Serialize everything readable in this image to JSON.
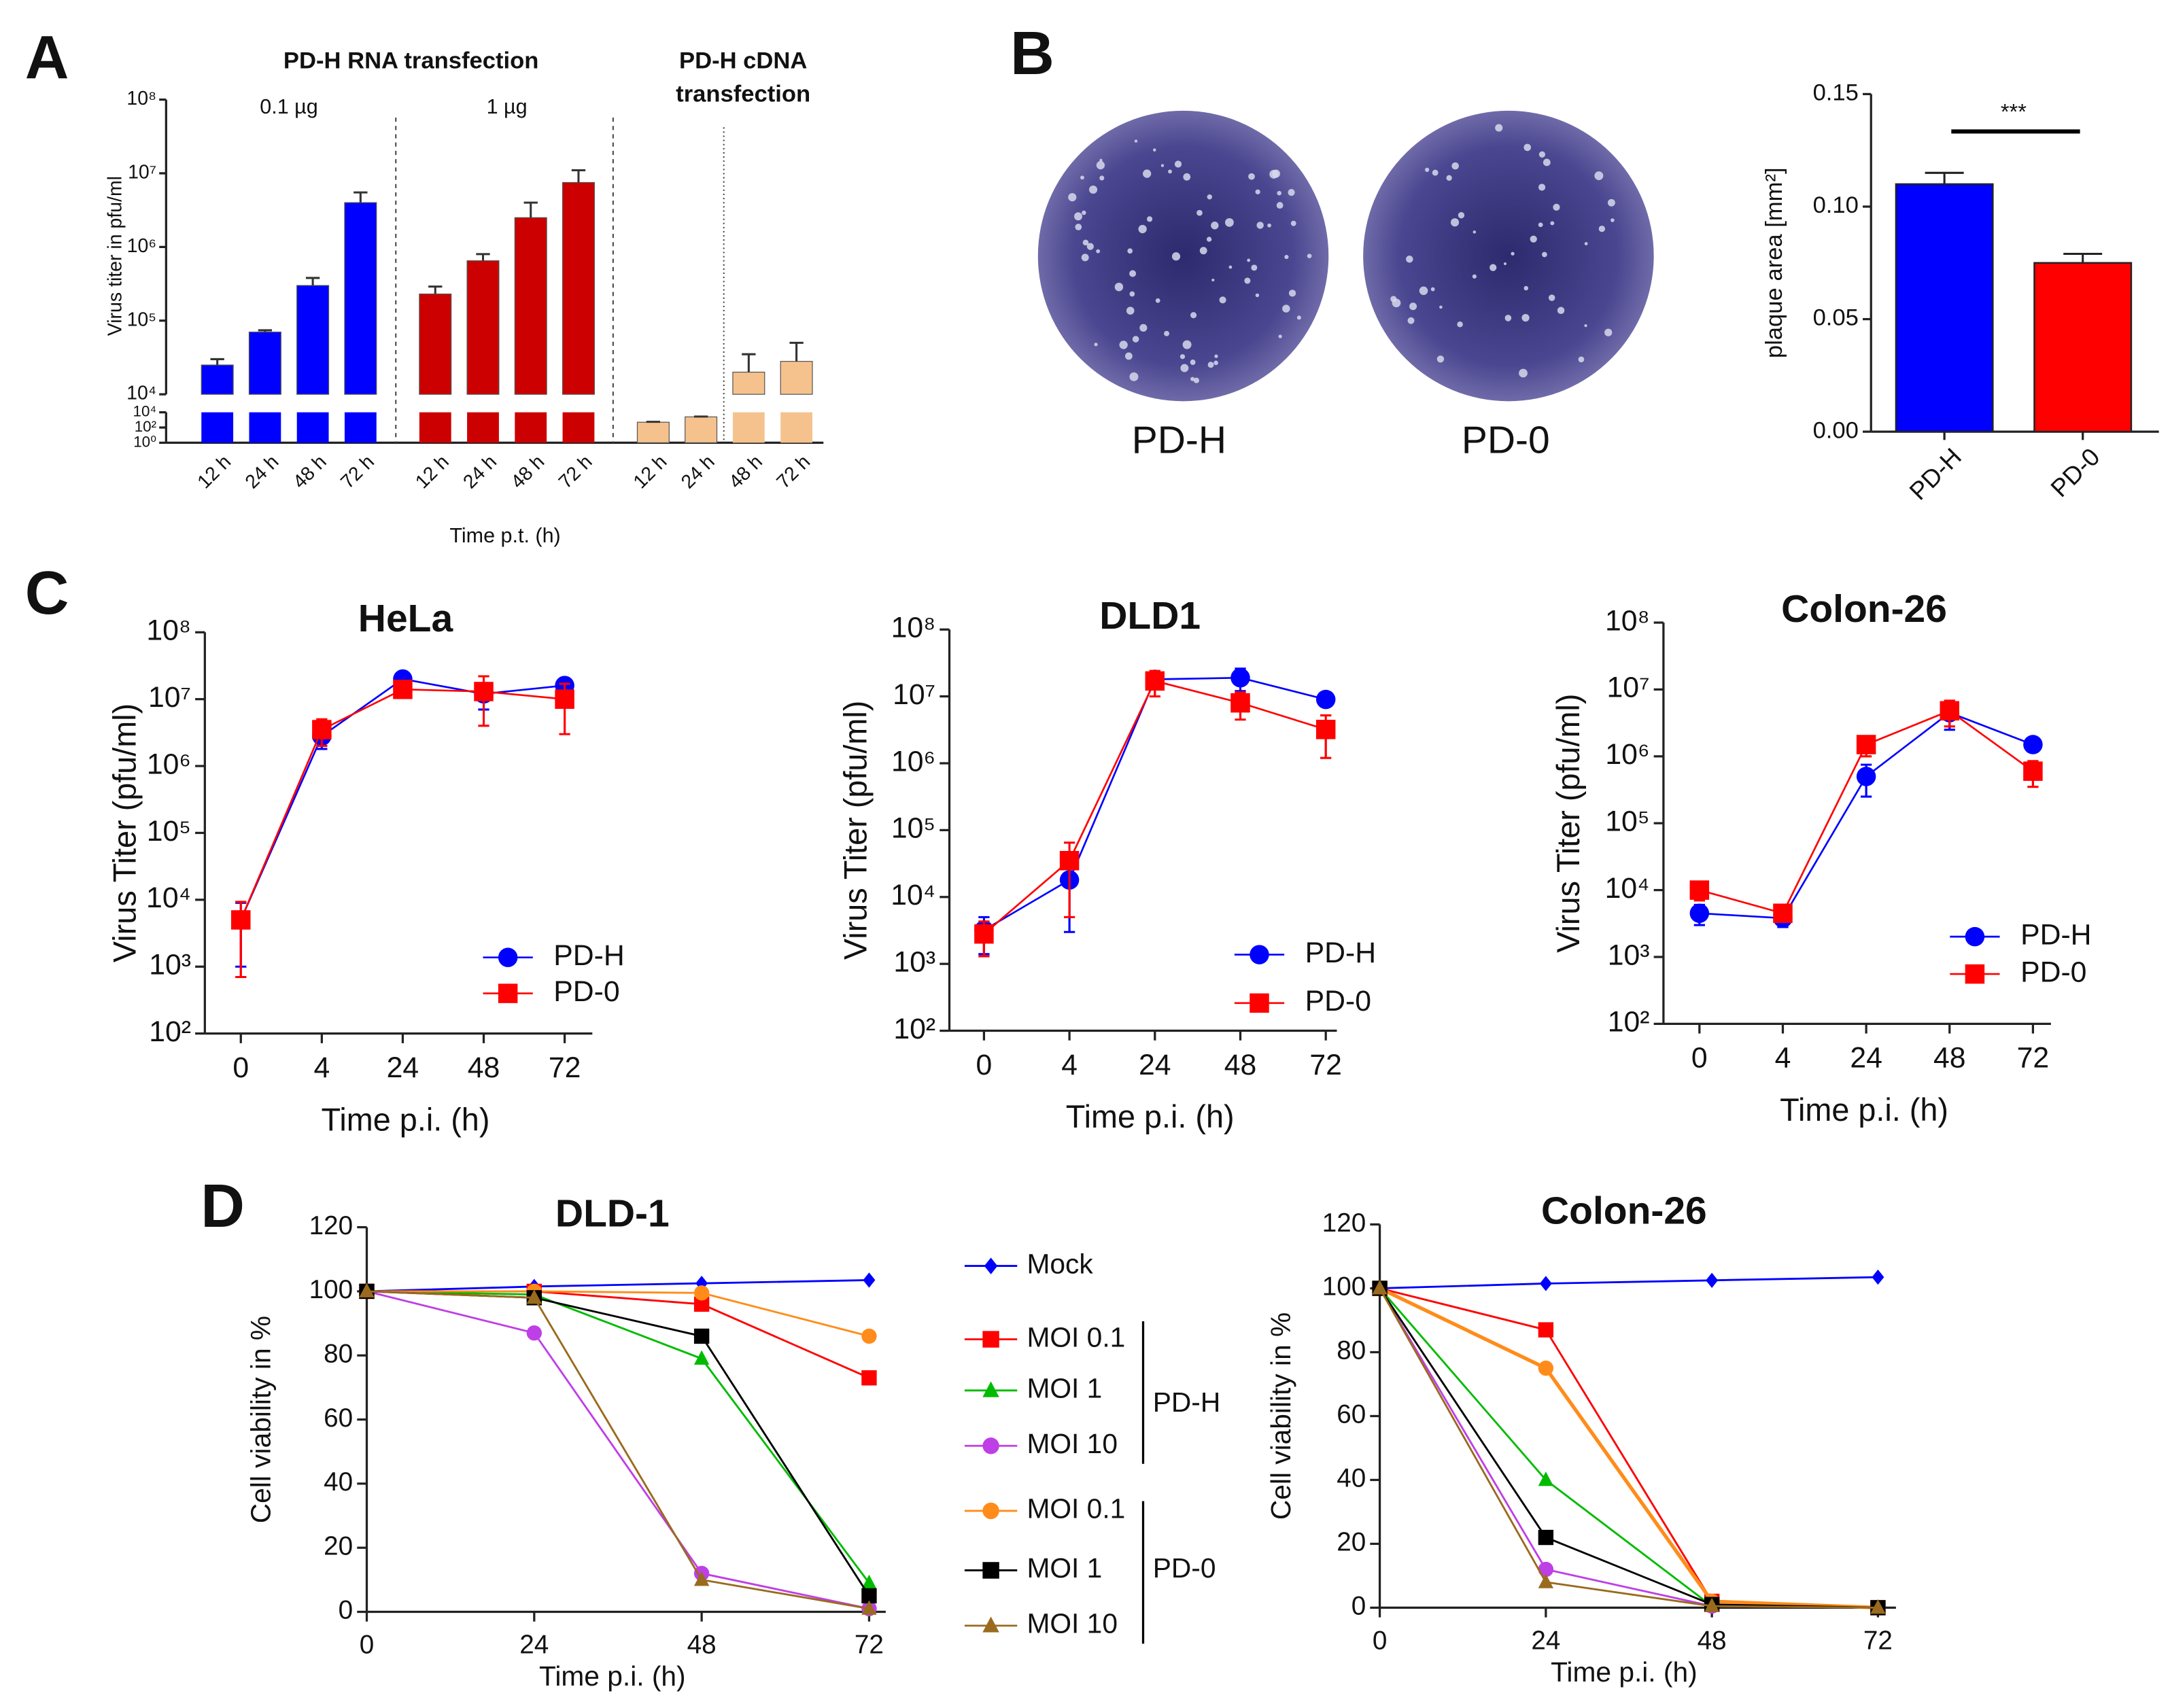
{
  "panel_labels": [
    "A",
    "B",
    "C",
    "D"
  ],
  "photos": {
    "labels": [
      "PD-H",
      "PD-0"
    ]
  },
  "chart_data": [
    {
      "type": "bar",
      "broken_axis": true,
      "header_left": "PD-H RNA transfection",
      "header_right": [
        "PD-H cDNA",
        "transfection"
      ],
      "ylabel": "Virus titer in pfu/ml",
      "xlabel": "Time p.t. (h)",
      "ylim": [
        10000,
        100000000
      ],
      "yticks": [
        {
          "value": 10000,
          "label": "10⁴"
        },
        {
          "value": 100000,
          "label": "10⁵"
        },
        {
          "value": 1000000,
          "label": "10⁶"
        },
        {
          "value": 10000000,
          "label": "10⁷"
        },
        {
          "value": 100000000,
          "label": "10⁸"
        }
      ],
      "lower_ylim": [
        1,
        10000
      ],
      "lower_yticks": [
        {
          "value": 1,
          "label": "10⁰"
        },
        {
          "value": 100,
          "label": "10²"
        },
        {
          "value": 10000,
          "label": "10⁴"
        }
      ],
      "groups": [
        {
          "label": "0.1 µg",
          "color": "#0000ff",
          "categories": [
            "12 h",
            "24 h",
            "48 h",
            "72 h"
          ],
          "values": [
            25000,
            70000,
            300000,
            4000000
          ],
          "errors": [
            5000,
            4000,
            80000,
            1500000
          ]
        },
        {
          "label": "1 µg",
          "color": "#cc0000",
          "categories": [
            "12 h",
            "24 h",
            "48 h",
            "72 h"
          ],
          "values": [
            230000,
            650000,
            2500000,
            7500000
          ],
          "errors": [
            60000,
            150000,
            1500000,
            3500000
          ]
        },
        {
          "color": "#f5c28e",
          "categories": [
            "12 h",
            "24 h",
            "48 h",
            "72 h"
          ],
          "values": [
            500,
            2500,
            20000,
            28000
          ],
          "errors": [
            60,
            250,
            15000,
            22000
          ]
        }
      ]
    },
    {
      "type": "bar",
      "ylabel": "plaque area [mm²]",
      "categories": [
        "PD-H",
        "PD-0"
      ],
      "values": [
        0.11,
        0.075
      ],
      "errors": [
        0.005,
        0.004
      ],
      "colors": [
        "#0000ff",
        "#ff0000"
      ],
      "ylim": [
        0,
        0.15
      ],
      "yticks": [
        {
          "value": 0,
          "label": "0.00"
        },
        {
          "value": 0.05,
          "label": "0.05"
        },
        {
          "value": 0.1,
          "label": "0.10"
        },
        {
          "value": 0.15,
          "label": "0.15"
        }
      ],
      "annotation": "***"
    },
    {
      "type": "line",
      "log_scale": true,
      "title": "HeLa",
      "ylabel": "Virus Titer (pfu/ml)",
      "xlabel": "Time p.i. (h)",
      "categories": [
        "0",
        "4",
        "24",
        "48",
        "72"
      ],
      "ylim": [
        100,
        100000000
      ],
      "yticks": [
        {
          "value": 100,
          "label": "10²"
        },
        {
          "value": 1000,
          "label": "10³"
        },
        {
          "value": 10000,
          "label": "10⁴"
        },
        {
          "value": 100000,
          "label": "10⁵"
        },
        {
          "value": 1000000,
          "label": "10⁶"
        },
        {
          "value": 10000000,
          "label": "10⁷"
        },
        {
          "value": 100000000,
          "label": "10⁸"
        }
      ],
      "series": [
        {
          "name": "PD-H",
          "color": "#0000ff",
          "marker": "circle",
          "values": [
            5000,
            2800000,
            20000000,
            12000000,
            16000000
          ],
          "errors": [
            4000,
            1000000,
            2000000,
            5000000,
            3000000
          ]
        },
        {
          "name": "PD-0",
          "color": "#ff0000",
          "marker": "square",
          "values": [
            5000,
            3500000,
            14000000,
            13000000,
            10000000
          ],
          "errors": [
            4300,
            1500000,
            2000000,
            9000000,
            7000000
          ]
        }
      ]
    },
    {
      "type": "line",
      "log_scale": true,
      "title": "DLD1",
      "ylabel": "Virus Titer (pfu/ml)",
      "xlabel": "Time p.i. (h)",
      "categories": [
        "0",
        "4",
        "24",
        "48",
        "72"
      ],
      "ylim": [
        100,
        100000000
      ],
      "yticks": [
        {
          "value": 100,
          "label": "10²"
        },
        {
          "value": 1000,
          "label": "10³"
        },
        {
          "value": 10000,
          "label": "10⁴"
        },
        {
          "value": 100000,
          "label": "10⁵"
        },
        {
          "value": 1000000,
          "label": "10⁶"
        },
        {
          "value": 10000000,
          "label": "10⁷"
        },
        {
          "value": 100000000,
          "label": "10⁸"
        }
      ],
      "series": [
        {
          "name": "PD-H",
          "color": "#0000ff",
          "marker": "circle",
          "values": [
            3200,
            18000,
            18000000,
            19000000,
            9000000
          ],
          "errors": [
            1800,
            15000,
            4000000,
            7000000,
            1500000
          ]
        },
        {
          "name": "PD-0",
          "color": "#ff0000",
          "marker": "square",
          "values": [
            2800,
            35000,
            17000000,
            8000000,
            3200000
          ],
          "errors": [
            1500,
            30000,
            7000000,
            3500000,
            2000000
          ]
        }
      ]
    },
    {
      "type": "line",
      "log_scale": true,
      "title": "Colon-26",
      "ylabel": "Virus Titer (pfu/ml)",
      "xlabel": "Time p.i. (h)",
      "categories": [
        "0",
        "4",
        "24",
        "48",
        "72"
      ],
      "ylim": [
        100,
        100000000
      ],
      "yticks": [
        {
          "value": 100,
          "label": "10²"
        },
        {
          "value": 1000,
          "label": "10³"
        },
        {
          "value": 10000,
          "label": "10⁴"
        },
        {
          "value": 100000,
          "label": "10⁵"
        },
        {
          "value": 1000000,
          "label": "10⁶"
        },
        {
          "value": 10000000,
          "label": "10⁷"
        },
        {
          "value": 100000000,
          "label": "10⁸"
        }
      ],
      "series": [
        {
          "name": "PD-H",
          "color": "#0000ff",
          "marker": "circle",
          "values": [
            4500,
            3800,
            500000,
            4500000,
            1500000
          ],
          "errors": [
            1500,
            1000,
            250000,
            2000000,
            300000
          ]
        },
        {
          "name": "PD-0",
          "color": "#ff0000",
          "marker": "square",
          "values": [
            10000,
            4500,
            1500000,
            4800000,
            600000
          ],
          "errors": [
            3000,
            1000,
            500000,
            2000000,
            250000
          ]
        }
      ]
    },
    {
      "type": "line",
      "title": "DLD-1",
      "ylabel": "Cell viability in %",
      "xlabel": "Time p.i. (h)",
      "x": [
        0,
        24,
        48,
        72
      ],
      "xlim": [
        0,
        72
      ],
      "xticks": [
        0,
        24,
        48,
        72
      ],
      "ylim": [
        0,
        120
      ],
      "yticks": [
        0,
        20,
        40,
        60,
        80,
        100,
        120
      ],
      "legend_group_labels": [
        "PD-H",
        "PD-0"
      ],
      "series": [
        {
          "name": "Mock",
          "color": "#0000ff",
          "marker": "diamond",
          "values": [
            100,
            101.5,
            102.5,
            103.5
          ]
        },
        {
          "name": "MOI 0.1",
          "color": "#ff0000",
          "marker": "square",
          "values": [
            100,
            100,
            96,
            73
          ]
        },
        {
          "name": "MOI 1",
          "color": "#00bb00",
          "marker": "triangle",
          "values": [
            100,
            99,
            79,
            9
          ]
        },
        {
          "name": "MOI 10",
          "color": "#bf3fe6",
          "marker": "circle",
          "values": [
            100,
            87,
            12,
            1
          ]
        },
        {
          "name": "MOI 0.1",
          "color": "#ff8c1a",
          "marker": "circle",
          "values": [
            100,
            100,
            99.5,
            86
          ]
        },
        {
          "name": "MOI 1",
          "color": "#000000",
          "marker": "square",
          "values": [
            100,
            98,
            86,
            5
          ]
        },
        {
          "name": "MOI 10",
          "color": "#9a6a1e",
          "marker": "triangle",
          "values": [
            100,
            98,
            10,
            1
          ]
        }
      ]
    },
    {
      "type": "line",
      "title": "Colon-26",
      "ylabel": "Cell viability in %",
      "xlabel": "Time p.i. (h)",
      "x": [
        0,
        24,
        48,
        72
      ],
      "xlim": [
        0,
        72
      ],
      "xticks": [
        0,
        24,
        48,
        72
      ],
      "ylim": [
        0,
        120
      ],
      "yticks": [
        0,
        20,
        40,
        60,
        80,
        100,
        120
      ],
      "series": [
        {
          "color": "#0000ff",
          "marker": "diamond",
          "values": [
            100,
            101.5,
            102.5,
            103.5
          ]
        },
        {
          "color": "#ff0000",
          "marker": "square",
          "values": [
            100,
            87,
            2,
            0
          ]
        },
        {
          "color": "#00bb00",
          "marker": "triangle",
          "values": [
            100,
            40,
            0.5,
            0
          ]
        },
        {
          "color": "#bf3fe6",
          "marker": "circle",
          "values": [
            100,
            12,
            0.5,
            0
          ]
        },
        {
          "color": "#ff8c1a",
          "marker": "circle",
          "values": [
            100,
            75,
            2,
            0
          ]
        },
        {
          "color": "#000000",
          "marker": "square",
          "values": [
            100,
            22,
            1,
            0
          ]
        },
        {
          "color": "#9a6a1e",
          "marker": "triangle",
          "values": [
            100,
            8,
            0.5,
            0
          ]
        }
      ]
    }
  ]
}
